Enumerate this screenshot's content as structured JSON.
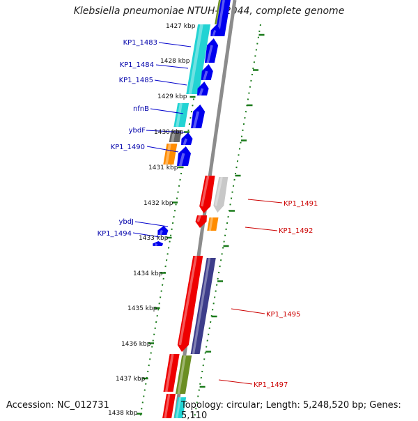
{
  "title": "Klebsiella pneumoniae NTUH-K2044, complete genome",
  "accession": "Accession: NC_012731",
  "topology": "Topology: circular; Length: 5,248,520 bp; Genes: 5,110",
  "colors": {
    "cyan": "#22d3d3",
    "blue": "#0000ee",
    "red": "#ee0000",
    "orange": "#ff8c00",
    "gray": "#9a9a9a",
    "dark_gray": "#666666",
    "light_gray": "#c8c8c8",
    "purple": "#3d3d8a",
    "olive": "#6b8e23",
    "tick_green": "#1a7a1a",
    "label_blue": "#0000aa",
    "label_red": "#cc0000"
  },
  "ruler_ticks": [
    "1427 kbp",
    "1428 kbp",
    "1429 kbp",
    "1430 kbp",
    "1431 kbp",
    "1432 kbp",
    "1433 kbp",
    "1434 kbp",
    "1435 kbp",
    "1436 kbp",
    "1437 kbp",
    "1438 kbp"
  ],
  "left_labels": [
    "KP1_1483",
    "KP1_1484",
    "KP1_1485",
    "nfnB",
    "ybdF",
    "KP1_1490",
    "ybdJ",
    "KP1_1494"
  ],
  "right_labels": [
    "KP1_1491",
    "KP1_1492",
    "KP1_1495",
    "KP1_1497"
  ]
}
